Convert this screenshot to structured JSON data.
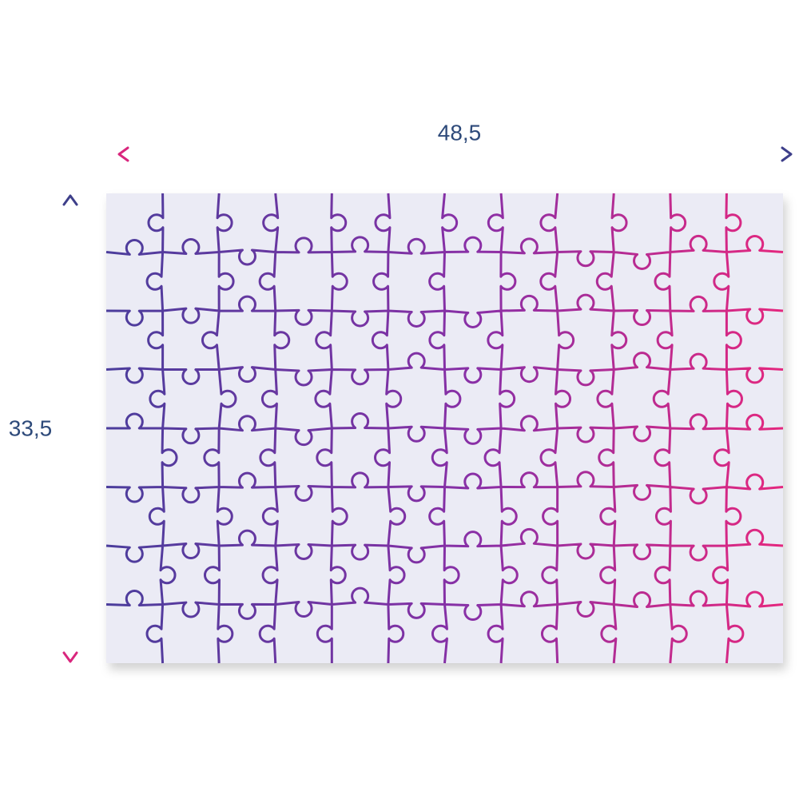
{
  "width_label": "48,5",
  "height_label": "33,5"
}
